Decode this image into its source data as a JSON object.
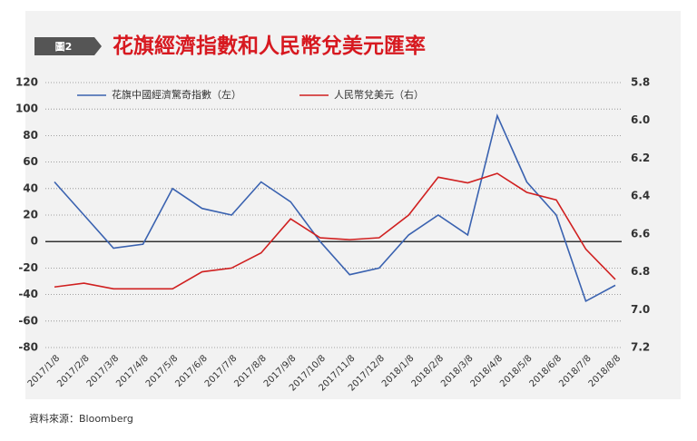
{
  "figure_label": "圖2",
  "source": "資料來源：Bloomberg",
  "chart_data": {
    "type": "line",
    "title": "花旗經濟指數和人民幣兌美元匯率",
    "categories": [
      "2017/1/8",
      "2017/2/8",
      "2017/3/8",
      "2017/4/8",
      "2017/5/8",
      "2017/6/8",
      "2017/7/8",
      "2017/8/8",
      "2017/9/8",
      "2017/10/8",
      "2017/11/8",
      "2017/12/8",
      "2018/1/8",
      "2018/2/8",
      "2018/3/8",
      "2018/4/8",
      "2018/5/8",
      "2018/6/8",
      "2018/7/8",
      "2018/8/8"
    ],
    "series": [
      {
        "name": "花旗中國經濟驚奇指數（左）",
        "color": "#3a62b0",
        "axis": "y",
        "values": [
          45,
          20,
          -5,
          -2,
          40,
          25,
          20,
          45,
          30,
          0,
          -25,
          -20,
          5,
          20,
          5,
          95,
          45,
          20,
          -45,
          -33
        ]
      },
      {
        "name": "人民幣兌美元（右）",
        "color": "#d02020",
        "axis": "y2",
        "values": [
          6.88,
          6.86,
          6.89,
          6.89,
          6.89,
          6.8,
          6.78,
          6.7,
          6.52,
          6.62,
          6.63,
          6.62,
          6.5,
          6.3,
          6.33,
          6.28,
          6.38,
          6.42,
          6.68,
          6.84
        ]
      }
    ],
    "ylim": [
      -80,
      120
    ],
    "yticks": [
      -80,
      -60,
      -40,
      -20,
      0,
      20,
      40,
      60,
      80,
      100,
      120
    ],
    "y2lim": [
      7.2,
      5.8
    ],
    "y2ticks": [
      {
        "value": 5.8,
        "label": "5.8"
      },
      {
        "value": 6,
        "label": "6.0"
      },
      {
        "value": 6.2,
        "label": "6.2"
      },
      {
        "value": 6.4,
        "label": "6.4"
      },
      {
        "value": 6.6,
        "label": "6.6"
      },
      {
        "value": 6.8,
        "label": "6.8"
      },
      {
        "value": 7,
        "label": "7.0"
      },
      {
        "value": 7.2,
        "label": "7.2"
      }
    ],
    "grid": true
  }
}
